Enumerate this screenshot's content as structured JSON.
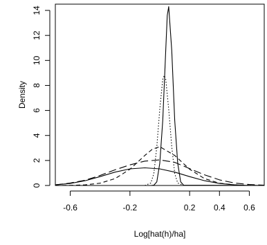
{
  "chart_data": {
    "type": "line",
    "title": "",
    "xlabel": "Log[hat(h)/ha]",
    "ylabel": "Density",
    "xlim": [
      -0.7,
      0.7
    ],
    "ylim": [
      0,
      14.5
    ],
    "xticks": [
      -0.6,
      -0.2,
      0.2,
      0.4,
      0.6
    ],
    "xtick_labels": [
      "-0.6",
      "-0.2",
      "0.2",
      "0.4",
      "0.6"
    ],
    "yticks": [
      0,
      2,
      4,
      6,
      8,
      10,
      12,
      14
    ],
    "ytick_labels": [
      "0",
      "2",
      "4",
      "6",
      "8",
      "10",
      "12",
      "14"
    ],
    "grid": false,
    "legend": "none",
    "series": [
      {
        "style": "solid",
        "color": "#000000",
        "x": [
          -0.7,
          -0.6,
          -0.5,
          -0.4,
          -0.3,
          -0.2,
          -0.1,
          0.0,
          0.1,
          0.2,
          0.3,
          0.4,
          0.5,
          0.6,
          0.7
        ],
        "y": [
          0.05,
          0.16,
          0.38,
          0.71,
          1.07,
          1.33,
          1.41,
          1.33,
          1.07,
          0.71,
          0.38,
          0.16,
          0.05,
          0.0,
          0.0
        ]
      },
      {
        "style": "solid",
        "color": "#000000",
        "x": [
          -0.06,
          -0.04,
          -0.02,
          0.0,
          0.02,
          0.04,
          0.05,
          0.06,
          0.08,
          0.1,
          0.12,
          0.14,
          0.16,
          0.7
        ],
        "y": [
          0.0,
          0.02,
          0.29,
          1.78,
          5.2,
          10.8,
          13.6,
          14.3,
          10.8,
          5.2,
          1.78,
          0.29,
          0.02,
          0.0
        ]
      },
      {
        "style": "dotted",
        "color": "#000000",
        "x": [
          -0.1,
          -0.06,
          -0.04,
          -0.02,
          0.0,
          0.02,
          0.03,
          0.04,
          0.06,
          0.08,
          0.1,
          0.12,
          0.16
        ],
        "y": [
          0.0,
          0.2,
          0.95,
          3.1,
          6.1,
          8.5,
          8.8,
          8.5,
          6.1,
          3.1,
          0.95,
          0.2,
          0.0
        ]
      },
      {
        "style": "dashed",
        "color": "#000000",
        "x": [
          -0.7,
          -0.6,
          -0.5,
          -0.4,
          -0.3,
          -0.2,
          -0.1,
          -0.05,
          0.0,
          0.1,
          0.2,
          0.3,
          0.4,
          0.5,
          0.6,
          0.7
        ],
        "y": [
          0.0,
          0.01,
          0.05,
          0.18,
          0.55,
          1.3,
          2.4,
          2.9,
          3.1,
          2.4,
          1.3,
          0.55,
          0.18,
          0.05,
          0.01,
          0.0
        ]
      },
      {
        "style": "longdash",
        "color": "#000000",
        "x": [
          -0.7,
          -0.6,
          -0.5,
          -0.4,
          -0.3,
          -0.2,
          -0.1,
          0.0,
          0.1,
          0.2,
          0.3,
          0.4,
          0.5,
          0.6,
          0.7
        ],
        "y": [
          0.05,
          0.2,
          0.42,
          0.8,
          1.25,
          1.65,
          1.95,
          2.05,
          1.85,
          1.35,
          0.85,
          0.45,
          0.2,
          0.08,
          0.02
        ]
      }
    ]
  }
}
